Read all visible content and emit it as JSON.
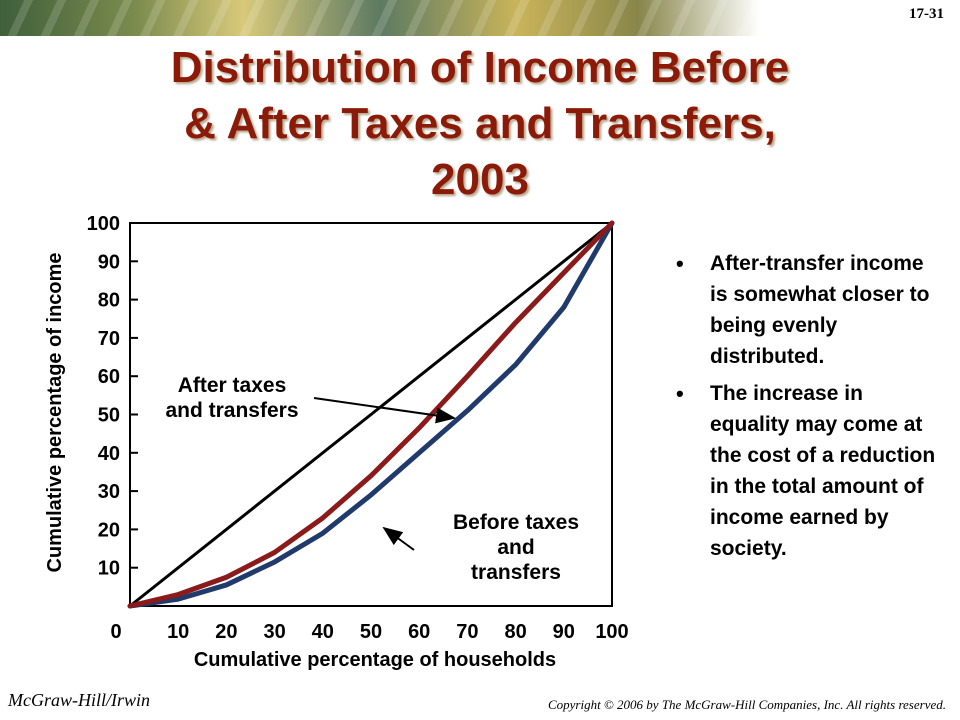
{
  "slide_number": "17-31",
  "title_lines": [
    "Distribution of Income Before",
    "& After Taxes and Transfers,",
    "2003"
  ],
  "bullets": [
    "After-transfer income is somewhat closer to being evenly distributed.",
    "The increase in equality may come at the cost of a reduction in the total amount of income earned by society."
  ],
  "footer": {
    "publisher": "McGraw-Hill/Irwin",
    "copyright": "Copyright © 2006 by The McGraw-Hill Companies, Inc. All rights reserved."
  },
  "colors": {
    "title": "#8b1a08",
    "equality_line": "#000000",
    "after_series": "#8b1a1a",
    "before_series": "#1f3a6b"
  },
  "chart_data": {
    "type": "line",
    "xlabel": "Cumulative percentage of households",
    "ylabel": "Cumulative percentage of income",
    "xlim": [
      0,
      100
    ],
    "ylim": [
      0,
      100
    ],
    "x_ticks": [
      "0",
      "10",
      "20",
      "30",
      "40",
      "50",
      "60",
      "70",
      "80",
      "90",
      "100"
    ],
    "y_ticks": [
      "100",
      "90",
      "80",
      "70",
      "60",
      "50",
      "40",
      "30",
      "20",
      "10"
    ],
    "series": [
      {
        "key": "equality",
        "x": [
          0,
          100
        ],
        "values": [
          0,
          100
        ]
      },
      {
        "key": "after",
        "x": [
          0,
          10,
          20,
          30,
          40,
          50,
          60,
          70,
          80,
          90,
          100
        ],
        "values": [
          0,
          3,
          7.5,
          14,
          23,
          34,
          46.5,
          60,
          74,
          87,
          100
        ]
      },
      {
        "key": "before",
        "x": [
          0,
          10,
          20,
          30,
          40,
          50,
          60,
          70,
          80,
          90,
          100
        ],
        "values": [
          0,
          1.8,
          5.5,
          11.5,
          19,
          29,
          40,
          51,
          63,
          78,
          100
        ]
      }
    ],
    "annotations": [
      {
        "key": "after",
        "lines": [
          "After taxes",
          "and transfers"
        ]
      },
      {
        "key": "before",
        "lines": [
          "Before taxes",
          "and",
          "transfers"
        ]
      }
    ]
  }
}
